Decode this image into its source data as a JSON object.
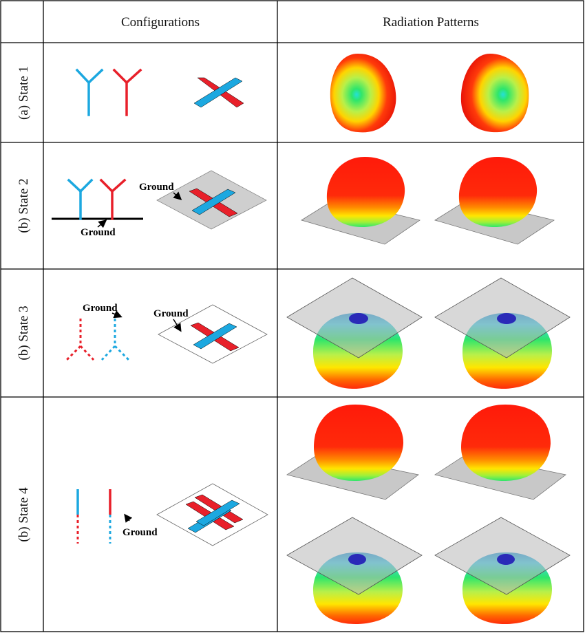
{
  "table": {
    "header_configurations": "Configurations",
    "header_radiation": "Radiation Patterns"
  },
  "rows": [
    {
      "label": "(a) State 1"
    },
    {
      "label": "(b) State 2",
      "ground_labels": [
        "Ground",
        "Ground"
      ]
    },
    {
      "label": "(b) State 3",
      "ground_labels": [
        "Ground",
        "Ground"
      ]
    },
    {
      "label": "(b) State 4",
      "ground_labels": [
        "Ground"
      ]
    }
  ],
  "colors": {
    "antenna_blue": "#1ca8e0",
    "antenna_red": "#e8202a",
    "ground_plane": "#c8c8c8",
    "pattern_red": "#ff1a0a",
    "pattern_yellow": "#ffe600",
    "pattern_green": "#2ee66b",
    "pattern_cyan": "#3fd0e8",
    "pattern_blue": "#2a2ab8"
  }
}
